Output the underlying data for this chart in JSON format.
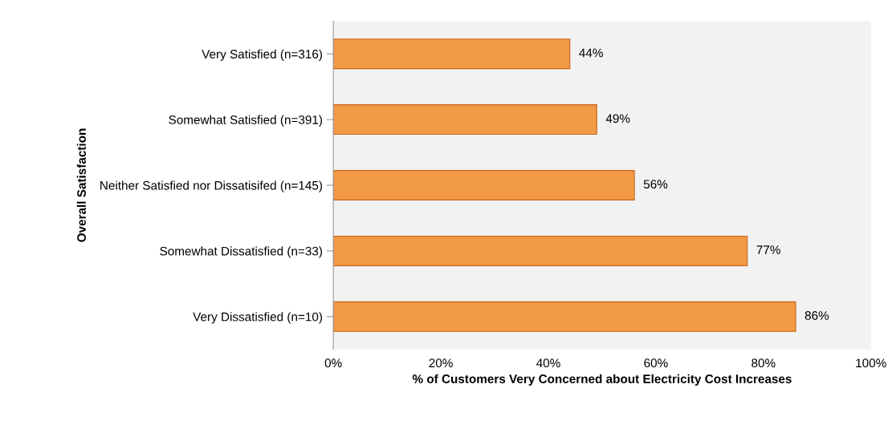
{
  "chart_data": {
    "type": "bar",
    "orientation": "horizontal",
    "xlabel": "% of Customers Very Concerned about Electricity Cost Increases",
    "ylabel": "Overall Satisfaction",
    "categories": [
      "Very Satisfied (n=316)",
      "Somewhat Satisfied (n=391)",
      "Neither Satisfied nor Dissatisifed (n=145)",
      "Somewhat Dissatisfied (n=33)",
      "Very Dissatisfied (n=10)"
    ],
    "values": [
      44,
      49,
      56,
      77,
      86
    ],
    "value_labels": [
      "44%",
      "49%",
      "56%",
      "77%",
      "86%"
    ],
    "color": "#f29a45",
    "xlim": [
      0,
      100
    ],
    "xticks": [
      {
        "value": 0,
        "label": "0%"
      },
      {
        "value": 20,
        "label": "20%"
      },
      {
        "value": 40,
        "label": "40%"
      },
      {
        "value": 60,
        "label": "60%"
      },
      {
        "value": 80,
        "label": "80%"
      },
      {
        "value": 100,
        "label": "100%"
      }
    ],
    "grid": false
  }
}
